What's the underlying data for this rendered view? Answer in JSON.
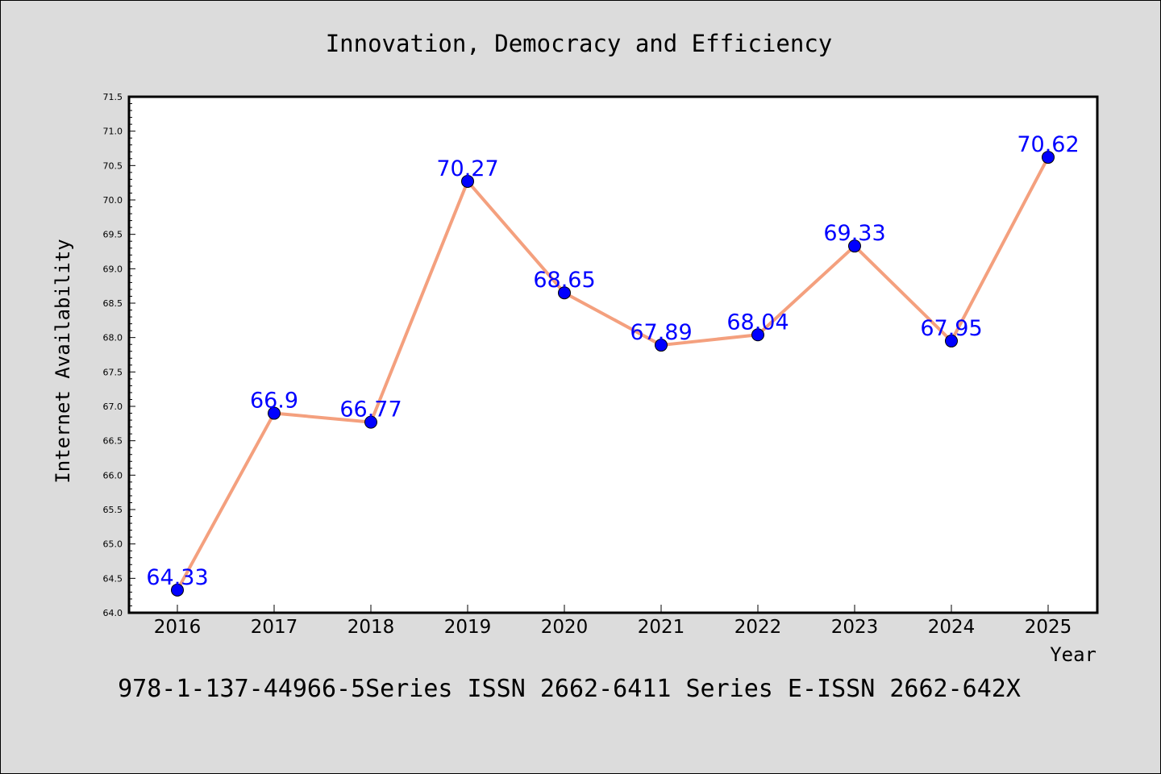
{
  "chart_data": {
    "type": "line",
    "title": "Innovation, Democracy and Efficiency",
    "xlabel": "Year",
    "ylabel": "Internet Availability",
    "x": [
      "2016",
      "2017",
      "2018",
      "2019",
      "2020",
      "2021",
      "2022",
      "2023",
      "2024",
      "2025"
    ],
    "series": [
      {
        "values": [
          64.33,
          66.9,
          66.77,
          70.27,
          68.65,
          67.89,
          68.04,
          69.33,
          67.95,
          70.62
        ],
        "labels": [
          "64.33",
          "66.9",
          "66.77",
          "70.27",
          "68.65",
          "67.89",
          "68.04",
          "69.33",
          "67.95",
          "70.62"
        ]
      }
    ],
    "ylim": [
      64.0,
      71.5
    ],
    "yticks": [
      "64.0",
      "64.5",
      "65.0",
      "65.5",
      "66.0",
      "66.5",
      "67.0",
      "67.5",
      "68.0",
      "68.5",
      "69.0",
      "69.5",
      "70.0",
      "70.5",
      "71.0",
      "71.5"
    ],
    "grid": false,
    "colors": {
      "line": "#f4a07e",
      "marker": "#0000ff",
      "label": "#0000ff",
      "background": "#dcdcdc",
      "plot_background": "#ffffff"
    }
  },
  "footer": "978-1-137-44966-5Series ISSN 2662-6411 Series E-ISSN 2662-642X"
}
